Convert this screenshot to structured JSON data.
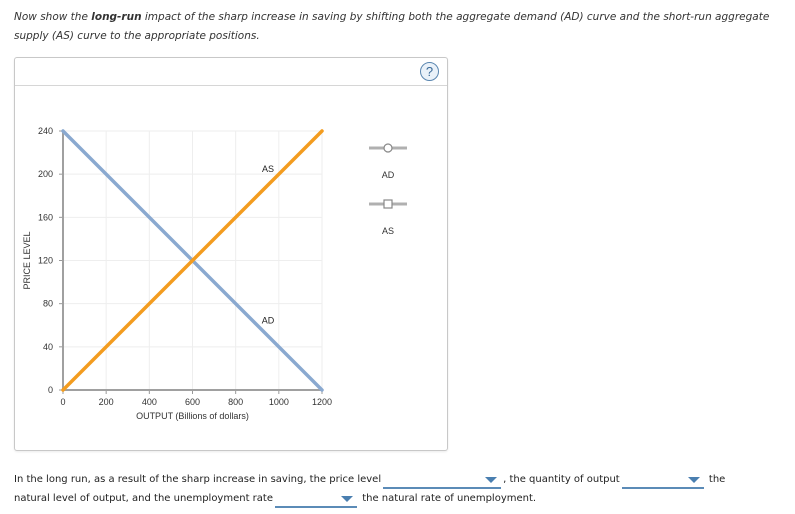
{
  "prompt": {
    "part1": "Now show the ",
    "bold": "long-run",
    "part2": " impact of the sharp increase in saving by shifting both the aggregate demand (AD) curve and the short-run aggregate supply (AS) curve to the appropriate positions."
  },
  "panel": {
    "help_icon": "?"
  },
  "legend": {
    "items": [
      {
        "label": "AD",
        "marker": "circle",
        "icon": "ad-tool-icon"
      },
      {
        "label": "AS",
        "marker": "square",
        "icon": "as-tool-icon"
      }
    ]
  },
  "chart_data": {
    "type": "line",
    "title": "",
    "xlabel": "OUTPUT (Billions of dollars)",
    "ylabel": "PRICE LEVEL",
    "xlim": [
      0,
      1200
    ],
    "ylim": [
      0,
      240
    ],
    "x_ticks": [
      0,
      200,
      400,
      600,
      800,
      1000,
      1200
    ],
    "y_ticks": [
      0,
      40,
      80,
      120,
      160,
      200,
      240
    ],
    "grid": true,
    "series": [
      {
        "name": "AD",
        "color": "#8aa9d0",
        "points": [
          [
            0,
            240
          ],
          [
            1200,
            0
          ]
        ],
        "label_pos": [
          950,
          60
        ]
      },
      {
        "name": "AS",
        "color": "#f39c1f",
        "points": [
          [
            0,
            0
          ],
          [
            1200,
            240
          ]
        ],
        "label_pos": [
          950,
          200
        ]
      }
    ],
    "legend_position": "right"
  },
  "answer": {
    "text1": "In the long run, as a result of the sharp increase in saving, the price level",
    "text2": ", the quantity of output",
    "text3": "the",
    "text4": "natural level of output, and the unemployment rate",
    "text5": "the natural rate of unemployment.",
    "dropdowns": [
      {
        "name": "price-level-dropdown",
        "value": ""
      },
      {
        "name": "quantity-output-dropdown",
        "value": ""
      },
      {
        "name": "unemployment-rate-dropdown",
        "value": ""
      }
    ]
  }
}
